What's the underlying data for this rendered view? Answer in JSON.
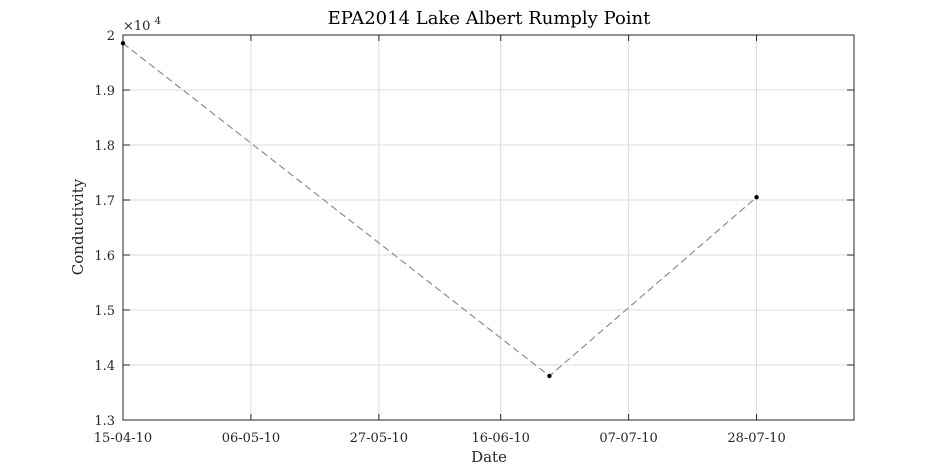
{
  "chart_data": {
    "type": "line",
    "title": "EPA2014 Lake Albert Rumply Point",
    "xlabel": "Date",
    "ylabel": "Conductivity",
    "exponent_base": "×10",
    "exponent_power": "4",
    "x_ticks": [
      "15-04-10",
      "06-05-10",
      "27-05-10",
      "16-06-10",
      "07-07-10",
      "28-07-10"
    ],
    "y_ticks": [
      "1.3",
      "1.4",
      "1.5",
      "1.6",
      "1.7",
      "1.8",
      "1.9",
      "2"
    ],
    "xlim": [
      "2010-04-15",
      "2010-08-13"
    ],
    "ylim": [
      13000,
      20000
    ],
    "grid": true,
    "series": [
      {
        "x": [
          "2010-04-15",
          "2010-06-24",
          "2010-07-28"
        ],
        "y": [
          19850,
          13800,
          17050
        ]
      }
    ],
    "colors": {
      "line": "#8c8c8c",
      "marker": "#000000",
      "grid": "#dcdcdc",
      "axis": "#262626"
    }
  }
}
